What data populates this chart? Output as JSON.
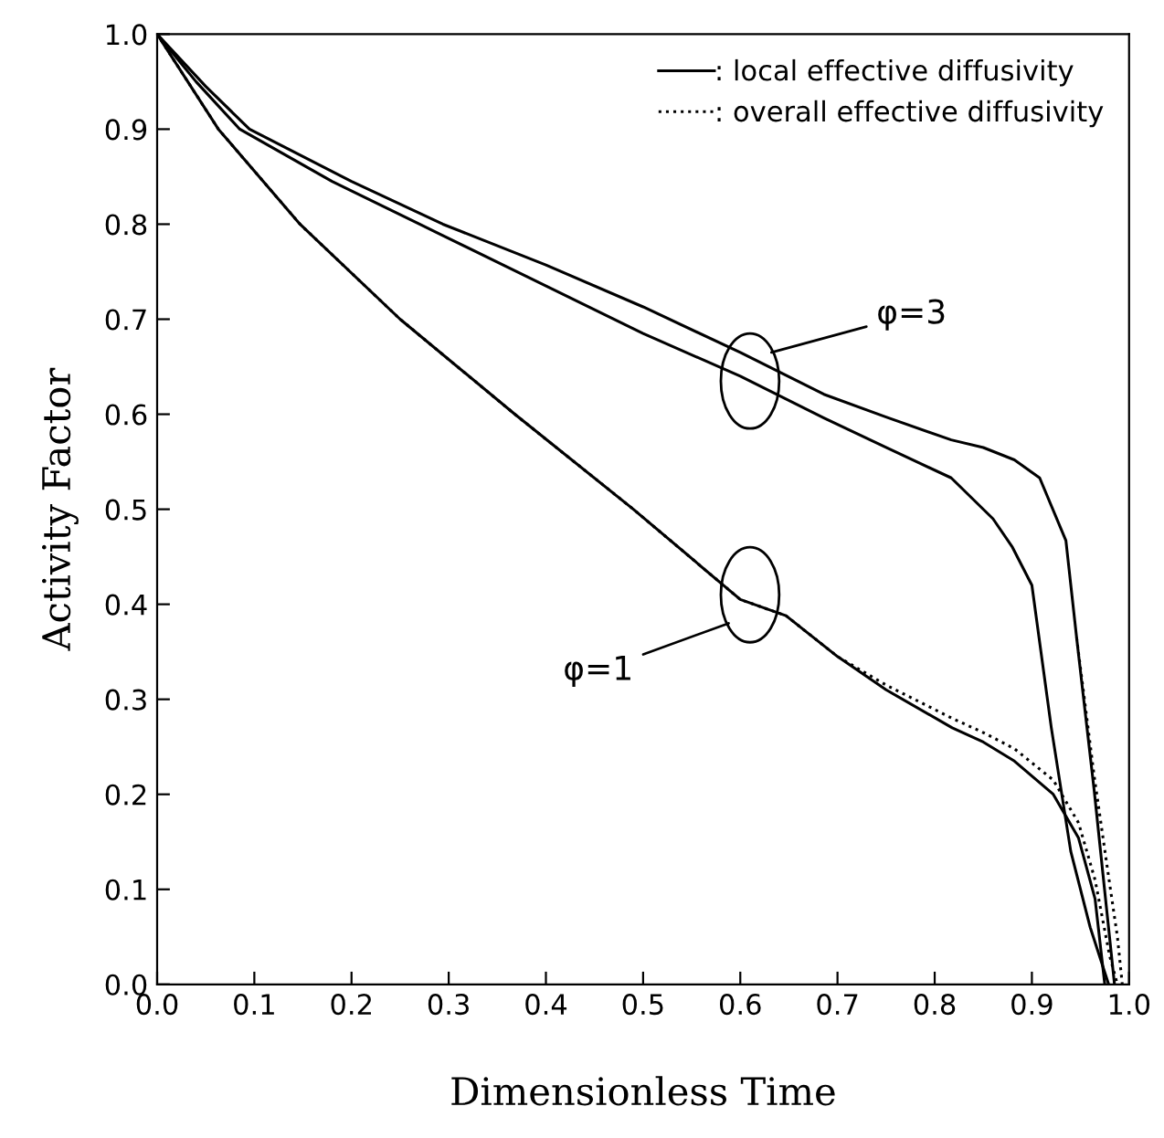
{
  "chart_data": {
    "type": "line",
    "xlabel": "Dimensionless Time",
    "ylabel": "Activity Factor",
    "xlim": [
      0.0,
      1.0
    ],
    "ylim": [
      0.0,
      1.0
    ],
    "xticks": [
      {
        "value": 0,
        "label": "0.0"
      },
      0.1,
      0.2,
      0.3,
      0.4,
      0.5,
      0.6,
      0.7,
      0.8,
      0.9,
      {
        "value": 1,
        "label": "1.0"
      }
    ],
    "yticks": [
      {
        "value": 0,
        "label": "0.0"
      },
      0.1,
      0.2,
      0.3,
      0.4,
      0.5,
      0.6,
      0.7,
      0.8,
      0.9,
      {
        "value": 1,
        "label": "1.0"
      }
    ],
    "grid": false,
    "legend": "top right",
    "marker": "none",
    "series": [
      {
        "name": ": local effective diffusivity",
        "color": "#000000",
        "line_style": "solid",
        "x": [
          0,
          0.05,
          0.095,
          0.2,
          0.294,
          0.4,
          0.5,
          0.6,
          0.686,
          0.75,
          0.817,
          0.85,
          0.882,
          0.908,
          0.935,
          0.946,
          0.964,
          0.985
        ],
        "values": [
          1.0,
          0.945,
          0.9,
          0.845,
          0.8,
          0.757,
          0.713,
          0.665,
          0.621,
          0.597,
          0.573,
          0.565,
          0.552,
          0.533,
          0.467,
          0.365,
          0.205,
          0.0
        ]
      },
      {
        "color": "#000000",
        "line_style": "solid",
        "x": [
          0,
          0.04,
          0.085,
          0.18,
          0.27,
          0.38,
          0.5,
          0.6,
          0.686,
          0.75,
          0.817,
          0.86,
          0.88,
          0.9,
          0.92,
          0.94,
          0.96,
          0.979
        ],
        "values": [
          1.0,
          0.95,
          0.9,
          0.845,
          0.8,
          0.745,
          0.685,
          0.64,
          0.596,
          0.565,
          0.533,
          0.49,
          0.46,
          0.42,
          0.27,
          0.14,
          0.06,
          0.0
        ]
      },
      {
        "color": "#000000",
        "line_style": "solid",
        "x": [
          0,
          0.063,
          0.147,
          0.25,
          0.368,
          0.49,
          0.6,
          0.647,
          0.7,
          0.75,
          0.818,
          0.85,
          0.882,
          0.922,
          0.948,
          0.965,
          0.975
        ],
        "values": [
          1.0,
          0.9,
          0.8,
          0.7,
          0.6,
          0.5,
          0.405,
          0.388,
          0.345,
          0.31,
          0.27,
          0.255,
          0.235,
          0.2,
          0.154,
          0.09,
          0.0
        ]
      },
      {
        "name": ": overall effective diffusivity",
        "color": "#000000",
        "line_style": "dotted",
        "x": [
          0,
          0.063,
          0.147,
          0.25,
          0.368,
          0.49,
          0.6,
          0.647,
          0.7,
          0.75,
          0.818,
          0.85,
          0.882,
          0.922,
          0.948,
          0.965,
          0.98,
          0.988
        ],
        "values": [
          1.0,
          0.9,
          0.8,
          0.7,
          0.6,
          0.5,
          0.405,
          0.388,
          0.345,
          0.315,
          0.28,
          0.265,
          0.248,
          0.215,
          0.17,
          0.11,
          0.03,
          0.0
        ]
      },
      {
        "color": "#000000",
        "line_style": "dotted",
        "x": [
          0.946,
          0.964,
          0.978,
          0.988,
          0.993
        ],
        "values": [
          0.365,
          0.22,
          0.12,
          0.05,
          0.0
        ]
      }
    ],
    "annotations": [
      "φ=3",
      "φ=1"
    ]
  }
}
